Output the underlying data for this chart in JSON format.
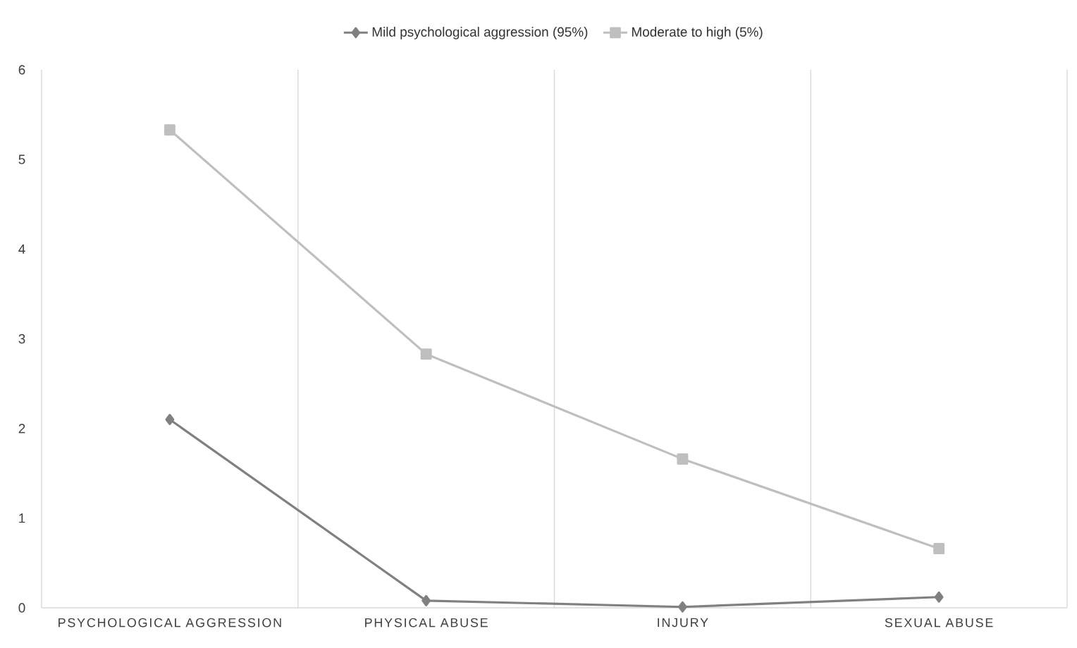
{
  "chart_data": {
    "type": "line",
    "categories": [
      "PSYCHOLOGICAL AGGRESSION",
      "PHYSICAL ABUSE",
      "INJURY",
      "SEXUAL ABUSE"
    ],
    "series": [
      {
        "name": "Mild psychological aggression (95%)",
        "color": "#808080",
        "marker": "diamond",
        "values": [
          2.1,
          0.08,
          0.01,
          0.12
        ]
      },
      {
        "name": "Moderate to high (5%)",
        "color": "#bfbfbf",
        "marker": "square",
        "values": [
          5.33,
          2.83,
          1.66,
          0.66
        ]
      }
    ],
    "ylim": [
      0,
      6
    ],
    "yticks": [
      0,
      1,
      2,
      3,
      4,
      5,
      6
    ],
    "grid": "x",
    "legend": "top",
    "line_style": "solid"
  }
}
